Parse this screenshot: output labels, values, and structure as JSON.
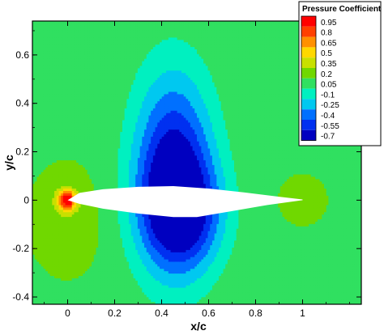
{
  "chart_data": {
    "type": "heatmap",
    "xlabel": "x/c",
    "ylabel": "y/c",
    "xlim": [
      -0.15,
      1.25
    ],
    "ylim": [
      -0.43,
      0.74
    ],
    "x_ticks": [
      "0",
      "0.2",
      "0.4",
      "0.6",
      "0.8",
      "1"
    ],
    "x_tick_values": [
      0,
      0.2,
      0.4,
      0.6,
      0.8,
      1
    ],
    "y_ticks": [
      "0.6",
      "0.4",
      "0.2",
      "0",
      "-0.2",
      "-0.4"
    ],
    "y_tick_values": [
      0.6,
      0.4,
      0.2,
      0,
      -0.2,
      -0.4
    ],
    "legend": {
      "title": "Pressure Coefficient",
      "placement": "top-right",
      "levels": [
        "0.95",
        "0.8",
        "0.65",
        "0.5",
        "0.35",
        "0.2",
        "0.05",
        "-0.1",
        "-0.25",
        "-0.4",
        "-0.55",
        "-0.7"
      ],
      "level_values": [
        0.95,
        0.8,
        0.65,
        0.5,
        0.35,
        0.2,
        0.05,
        -0.1,
        -0.25,
        -0.4,
        -0.55,
        -0.7
      ],
      "colors": [
        "#ff0000",
        "#ff4000",
        "#ff9000",
        "#ffd800",
        "#c8e000",
        "#70d800",
        "#30e060",
        "#00f0c0",
        "#00c8f0",
        "#0070ff",
        "#0030f0",
        "#0000c0"
      ]
    },
    "field": {
      "variable": "Pressure Coefficient",
      "freestream_value": 0.1,
      "min_value": -0.7,
      "max_value": 0.95,
      "stagnation_point": [
        0,
        0
      ],
      "suction_peak_upper": [
        0.45,
        0.12
      ],
      "suction_peak_lower": [
        0.49,
        -0.06
      ],
      "trailing_edge": [
        1,
        0
      ]
    },
    "airfoil": {
      "leading_edge": [
        0,
        0
      ],
      "trailing_edge": [
        1,
        0
      ],
      "upper_surface": [
        [
          0,
          0
        ],
        [
          0.05,
          0.03
        ],
        [
          0.15,
          0.045
        ],
        [
          0.3,
          0.055
        ],
        [
          0.45,
          0.058
        ],
        [
          0.6,
          0.048
        ],
        [
          0.75,
          0.032
        ],
        [
          0.9,
          0.014
        ],
        [
          1,
          0.003
        ]
      ],
      "lower_surface": [
        [
          0,
          0
        ],
        [
          0.05,
          -0.015
        ],
        [
          0.15,
          -0.035
        ],
        [
          0.3,
          -0.055
        ],
        [
          0.45,
          -0.07
        ],
        [
          0.55,
          -0.07
        ],
        [
          0.7,
          -0.045
        ],
        [
          0.85,
          -0.02
        ],
        [
          1,
          0
        ]
      ]
    }
  }
}
